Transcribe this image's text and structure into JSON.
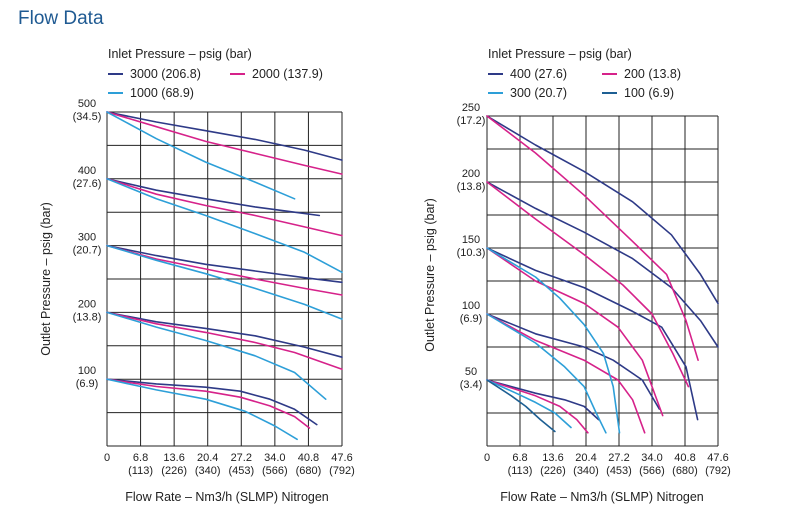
{
  "page": {
    "title": "Flow Data"
  },
  "chart_data": [
    {
      "type": "line",
      "legend_title": "Inlet Pressure  –  psig (bar)",
      "xlabel": "Flow Rate  –  Nm3/h (SLMP) Nitrogen",
      "ylabel": "Outlet Pressure  –  psig (bar)",
      "xlim": [
        0,
        47.6
      ],
      "ylim": [
        0,
        500
      ],
      "x_ticks": [
        {
          "value": 0,
          "label": "0",
          "sub": ""
        },
        {
          "value": 6.8,
          "label": "6.8",
          "sub": "(113)"
        },
        {
          "value": 13.6,
          "label": "13.6",
          "sub": "(226)"
        },
        {
          "value": 20.4,
          "label": "20.4",
          "sub": "(340)"
        },
        {
          "value": 27.2,
          "label": "27.2",
          "sub": "(453)"
        },
        {
          "value": 34.0,
          "label": "34.0",
          "sub": "(566)"
        },
        {
          "value": 40.8,
          "label": "40.8",
          "sub": "(680)"
        },
        {
          "value": 47.6,
          "label": "47.6",
          "sub": "(792)"
        }
      ],
      "y_ticks": [
        {
          "value": 100,
          "label": "100",
          "sub": "(6.9)"
        },
        {
          "value": 200,
          "label": "200",
          "sub": "(13.8)"
        },
        {
          "value": 300,
          "label": "300",
          "sub": "(20.7)"
        },
        {
          "value": 400,
          "label": "400",
          "sub": "(27.6)"
        },
        {
          "value": 500,
          "label": "500",
          "sub": "(34.5)"
        }
      ],
      "grid": true,
      "series": [
        {
          "name": "3000 (206.8)",
          "color": "#2e3a87",
          "curves": [
            [
              [
                0,
                500
              ],
              [
                10,
                485
              ],
              [
                20,
                472
              ],
              [
                30,
                459
              ],
              [
                40,
                443
              ],
              [
                47.6,
                428
              ]
            ],
            [
              [
                0,
                400
              ],
              [
                10,
                383
              ],
              [
                20,
                370
              ],
              [
                30,
                358
              ],
              [
                38,
                350
              ],
              [
                43,
                345
              ]
            ],
            [
              [
                0,
                300
              ],
              [
                10,
                285
              ],
              [
                20,
                272
              ],
              [
                30,
                262
              ],
              [
                40,
                252
              ],
              [
                47.6,
                245
              ]
            ],
            [
              [
                0,
                200
              ],
              [
                10,
                186
              ],
              [
                20,
                176
              ],
              [
                30,
                165
              ],
              [
                40,
                148
              ],
              [
                47.6,
                133
              ]
            ],
            [
              [
                0,
                100
              ],
              [
                10,
                93
              ],
              [
                20,
                88
              ],
              [
                27,
                82
              ],
              [
                33,
                70
              ],
              [
                38,
                55
              ],
              [
                42.5,
                32
              ]
            ]
          ]
        },
        {
          "name": "2000 (137.9)",
          "color": "#d6228a",
          "curves": [
            [
              [
                0,
                500
              ],
              [
                10,
                478
              ],
              [
                20,
                456
              ],
              [
                30,
                438
              ],
              [
                40,
                420
              ],
              [
                47.6,
                407
              ]
            ],
            [
              [
                0,
                400
              ],
              [
                10,
                377
              ],
              [
                20,
                360
              ],
              [
                30,
                345
              ],
              [
                40,
                328
              ],
              [
                47.6,
                315
              ]
            ],
            [
              [
                0,
                300
              ],
              [
                10,
                280
              ],
              [
                20,
                265
              ],
              [
                30,
                250
              ],
              [
                40,
                236
              ],
              [
                47.6,
                226
              ]
            ],
            [
              [
                0,
                200
              ],
              [
                10,
                183
              ],
              [
                20,
                170
              ],
              [
                30,
                155
              ],
              [
                38,
                140
              ],
              [
                47.6,
                115
              ]
            ],
            [
              [
                0,
                100
              ],
              [
                10,
                89
              ],
              [
                20,
                82
              ],
              [
                27,
                73
              ],
              [
                33,
                60
              ],
              [
                38,
                44
              ],
              [
                41,
                27
              ]
            ]
          ]
        },
        {
          "name": "1000 (68.9)",
          "color": "#2d9fd8",
          "curves": [
            [
              [
                0,
                500
              ],
              [
                10,
                460
              ],
              [
                20,
                425
              ],
              [
                30,
                395
              ],
              [
                38,
                370
              ]
            ],
            [
              [
                0,
                400
              ],
              [
                10,
                370
              ],
              [
                20,
                345
              ],
              [
                30,
                318
              ],
              [
                40,
                290
              ],
              [
                47.6,
                260
              ]
            ],
            [
              [
                0,
                300
              ],
              [
                10,
                278
              ],
              [
                20,
                258
              ],
              [
                30,
                236
              ],
              [
                40,
                212
              ],
              [
                47.6,
                190
              ]
            ],
            [
              [
                0,
                200
              ],
              [
                10,
                178
              ],
              [
                20,
                158
              ],
              [
                30,
                135
              ],
              [
                38,
                110
              ],
              [
                44.3,
                70
              ]
            ],
            [
              [
                0,
                100
              ],
              [
                10,
                84
              ],
              [
                20,
                70
              ],
              [
                28,
                52
              ],
              [
                34,
                30
              ],
              [
                38.5,
                10
              ]
            ]
          ]
        }
      ]
    },
    {
      "type": "line",
      "legend_title": "Inlet Pressure  –  psig (bar)",
      "xlabel": "Flow Rate  –  Nm3/h (SLMP) Nitrogen",
      "ylabel": "Outlet Pressure  –  psig (bar)",
      "xlim": [
        0,
        47.6
      ],
      "ylim": [
        0,
        250
      ],
      "x_ticks": [
        {
          "value": 0,
          "label": "0",
          "sub": ""
        },
        {
          "value": 6.8,
          "label": "6.8",
          "sub": "(113)"
        },
        {
          "value": 13.6,
          "label": "13.6",
          "sub": "(226)"
        },
        {
          "value": 20.4,
          "label": "20.4",
          "sub": "(340)"
        },
        {
          "value": 27.2,
          "label": "27.2",
          "sub": "(453)"
        },
        {
          "value": 34.0,
          "label": "34.0",
          "sub": "(566)"
        },
        {
          "value": 40.8,
          "label": "40.8",
          "sub": "(680)"
        },
        {
          "value": 47.6,
          "label": "47.6",
          "sub": "(792)"
        }
      ],
      "y_ticks": [
        {
          "value": 50,
          "label": "50",
          "sub": "(3.4)"
        },
        {
          "value": 100,
          "label": "100",
          "sub": "(6.9)"
        },
        {
          "value": 150,
          "label": "150",
          "sub": "(10.3)"
        },
        {
          "value": 200,
          "label": "200",
          "sub": "(13.8)"
        },
        {
          "value": 250,
          "label": "250",
          "sub": "(17.2)"
        }
      ],
      "grid": true,
      "series": [
        {
          "name": "400 (27.6)",
          "color": "#2e3a87",
          "curves": [
            [
              [
                0,
                250
              ],
              [
                10,
                228
              ],
              [
                20,
                208
              ],
              [
                30,
                185
              ],
              [
                38,
                160
              ],
              [
                44,
                130
              ],
              [
                47.6,
                108
              ]
            ],
            [
              [
                0,
                200
              ],
              [
                10,
                180
              ],
              [
                20,
                162
              ],
              [
                30,
                142
              ],
              [
                38,
                120
              ],
              [
                44,
                95
              ],
              [
                47.6,
                75
              ]
            ],
            [
              [
                0,
                150
              ],
              [
                10,
                133
              ],
              [
                20,
                120
              ],
              [
                30,
                102
              ],
              [
                36,
                90
              ],
              [
                41,
                60
              ],
              [
                43.4,
                20
              ]
            ],
            [
              [
                0,
                100
              ],
              [
                10,
                85
              ],
              [
                20,
                75
              ],
              [
                26,
                65
              ],
              [
                32,
                50
              ],
              [
                35.5,
                28
              ]
            ],
            [
              [
                0,
                50
              ],
              [
                10,
                40
              ],
              [
                16,
                35
              ],
              [
                20,
                30
              ],
              [
                23,
                20
              ]
            ]
          ]
        },
        {
          "name": "200 (13.8)",
          "color": "#d6228a",
          "curves": [
            [
              [
                0,
                250
              ],
              [
                10,
                222
              ],
              [
                20,
                190
              ],
              [
                30,
                155
              ],
              [
                37,
                130
              ],
              [
                41,
                95
              ],
              [
                43.5,
                65
              ]
            ],
            [
              [
                0,
                200
              ],
              [
                10,
                172
              ],
              [
                20,
                145
              ],
              [
                28,
                122
              ],
              [
                34,
                100
              ],
              [
                38.3,
                70
              ],
              [
                41.5,
                45
              ]
            ],
            [
              [
                0,
                150
              ],
              [
                10,
                125
              ],
              [
                20,
                108
              ],
              [
                27,
                90
              ],
              [
                32,
                65
              ],
              [
                36.2,
                23
              ]
            ],
            [
              [
                0,
                100
              ],
              [
                10,
                80
              ],
              [
                20,
                65
              ],
              [
                27,
                50
              ],
              [
                30,
                35
              ],
              [
                32.5,
                10
              ]
            ],
            [
              [
                0,
                50
              ],
              [
                10,
                38
              ],
              [
                15,
                30
              ],
              [
                18.5,
                20
              ],
              [
                20.8,
                10
              ]
            ]
          ]
        },
        {
          "name": "300 (20.7)",
          "color": "#2d9fd8",
          "curves": [
            [
              [
                0,
                150
              ],
              [
                10,
                128
              ],
              [
                15,
                112
              ],
              [
                20,
                92
              ],
              [
                24,
                70
              ],
              [
                26,
                45
              ],
              [
                27.3,
                10
              ]
            ],
            [
              [
                0,
                100
              ],
              [
                10,
                78
              ],
              [
                16,
                60
              ],
              [
                20,
                45
              ],
              [
                22.5,
                25
              ],
              [
                24.5,
                10
              ]
            ],
            [
              [
                0,
                50
              ],
              [
                6,
                40
              ],
              [
                10,
                33
              ],
              [
                14,
                25
              ],
              [
                17.3,
                14
              ]
            ]
          ]
        },
        {
          "name": "100 (6.9)",
          "color": "#1d5f93",
          "curves": [
            [
              [
                0,
                50
              ],
              [
                5,
                38
              ],
              [
                8,
                30
              ],
              [
                11,
                20
              ],
              [
                14,
                11
              ]
            ]
          ]
        }
      ]
    }
  ]
}
